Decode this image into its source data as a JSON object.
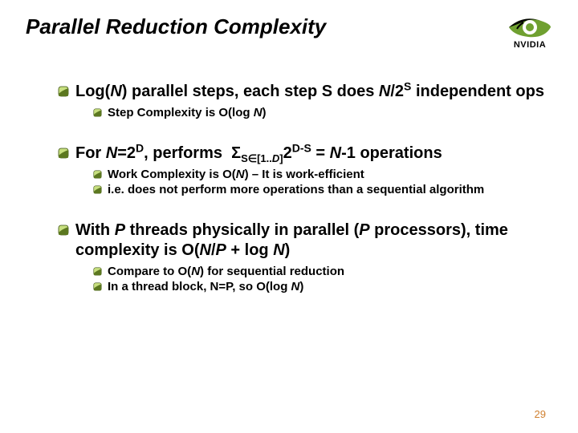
{
  "title": "Parallel Reduction Complexity",
  "logo": {
    "brand": "NVIDIA",
    "eye_color": "#6fa030",
    "eye_dark": "#000000"
  },
  "page_number": "29",
  "bullet_icon": {
    "fill_light": "#c8e080",
    "fill_dark": "#5c7820",
    "stroke": "#3a5010"
  },
  "text_color": "#000000",
  "sections": [
    {
      "main_html": "Log(<span class='italic'>N</span>) parallel steps, each step S does <span class='italic'>N</span>/2<sup>S</sup> independent ops",
      "subs": [
        "Step Complexity is O(log <span class='italic'>N</span>)"
      ]
    },
    {
      "main_html": "For <span class='italic'>N</span>=2<sup>D</sup>, performs &nbsp;&Sigma;<sub>S&isin;[1..<span class='italic'>D</span>]</sub>2<sup>D-S</sup> = <span class='italic'>N</span>-1 operations",
      "subs": [
        "Work Complexity is O(<span class='italic'>N</span>) – It is work-efficient",
        "i.e. does not perform more operations than a sequential algorithm"
      ]
    },
    {
      "main_html": "With <span class='italic'>P</span> threads physically in parallel (<span class='italic'>P</span> processors), time complexity is O(<span class='italic'>N</span>/<span class='italic'>P</span> + log <span class='italic'>N</span>)",
      "subs": [
        "Compare to O(<span class='italic'>N</span>) for sequential reduction",
        "In a thread block, N=P, so O(log <span class='italic'>N</span>)"
      ]
    }
  ]
}
